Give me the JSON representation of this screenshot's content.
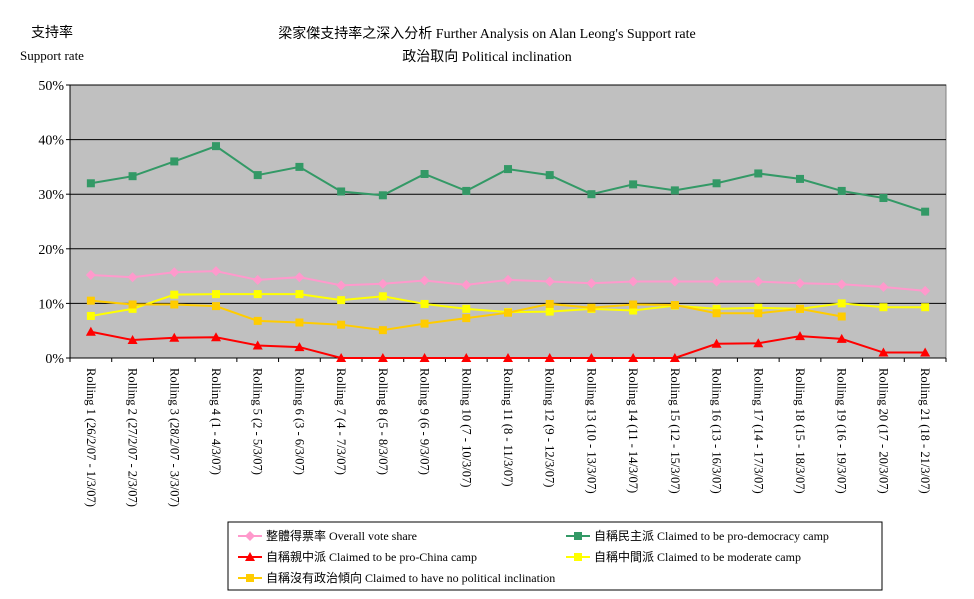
{
  "chart_data": {
    "type": "line",
    "title": "梁家傑支持率之深入分析 Further Analysis on Alan Leong's Support rate",
    "subtitle": "政治取向 Political inclination",
    "ylabel_zh": "支持率",
    "ylabel_en": "Support rate",
    "ylim": [
      0,
      50
    ],
    "yticks": [
      "0%",
      "10%",
      "20%",
      "30%",
      "40%",
      "50%"
    ],
    "ytick_values": [
      0,
      10,
      20,
      30,
      40,
      50
    ],
    "grid": true,
    "legend_position": "bottom",
    "categories": [
      "Rolling 1 (26/2/07 - 1/3/07)",
      "Rolling 2 (27/2/07 - 2/3/07)",
      "Rolling 3 (28/2/07 - 3/3/07)",
      "Rolling 4 (1 - 4/3/07)",
      "Rolling 5 (2 - 5/3/07)",
      "Rolling 6 (3 - 6/3/07)",
      "Rolling 7 (4 - 7/3/07)",
      "Rolling 8 (5 - 8/3/07)",
      "Rolling 9 (6 - 9/3/07)",
      "Rolling 10 (7 - 10/3/07)",
      "Rolling 11 (8 - 11/3/07)",
      "Rolling 12 (9 - 12/3/07)",
      "Rolling 13 (10 - 13/3/07)",
      "Rolling 14 (11 - 14/3/07)",
      "Rolling 15 (12 - 15/3/07)",
      "Rolling 16 (13 - 16/3/07)",
      "Rolling 17 (14 - 17/3/07)",
      "Rolling 18 (15 - 18/3/07)",
      "Rolling 19 (16 - 19/3/07)",
      "Rolling 20 (17 - 20/3/07)",
      "Rolling 21 (18 - 21/3/07)"
    ],
    "series": [
      {
        "name": "整體得票率 Overall vote share",
        "color": "#ff99cc",
        "marker": "diamond",
        "values": [
          15.2,
          14.8,
          15.7,
          15.9,
          14.3,
          14.8,
          13.3,
          13.6,
          14.2,
          13.4,
          14.3,
          14.0,
          13.7,
          14.0,
          14.0,
          14.0,
          14.0,
          13.7,
          13.5,
          13.0,
          12.3
        ]
      },
      {
        "name": "自稱民主派 Claimed to be pro-democracy camp",
        "color": "#339966",
        "marker": "square",
        "values": [
          32.0,
          33.3,
          36.0,
          38.8,
          33.5,
          35.0,
          30.5,
          29.8,
          33.7,
          30.6,
          34.6,
          33.5,
          30.0,
          31.8,
          30.7,
          32.0,
          33.8,
          32.8,
          30.6,
          29.3,
          26.8
        ]
      },
      {
        "name": "自稱親中派 Claimed to be pro-China camp",
        "color": "#ff0000",
        "marker": "triangle",
        "values": [
          4.8,
          3.3,
          3.7,
          3.8,
          2.3,
          2.0,
          0,
          0,
          0,
          0,
          0,
          0,
          0,
          0,
          0,
          2.6,
          2.7,
          4.0,
          3.5,
          1.0,
          1.0
        ]
      },
      {
        "name": "自稱中間派 Claimed to be moderate camp",
        "color": "#ffff00",
        "marker": "square",
        "values": [
          7.7,
          9.0,
          11.6,
          11.7,
          11.7,
          11.7,
          10.6,
          11.3,
          9.9,
          9.0,
          8.4,
          8.5,
          9.0,
          8.7,
          9.6,
          9.0,
          9.2,
          9.0,
          10.0,
          9.3,
          9.3
        ]
      },
      {
        "name": "自稱沒有政治傾向 Claimed to have no political inclination",
        "color": "#ffcc00",
        "marker": "square",
        "values": [
          10.5,
          9.8,
          9.8,
          9.5,
          6.8,
          6.5,
          6.1,
          5.1,
          6.3,
          7.3,
          8.3,
          9.9,
          9.2,
          9.8,
          9.7,
          8.2,
          8.2,
          9.0,
          7.6,
          null,
          null
        ]
      }
    ],
    "legend_layout": [
      [
        0,
        1
      ],
      [
        2,
        3
      ],
      [
        4
      ]
    ]
  }
}
